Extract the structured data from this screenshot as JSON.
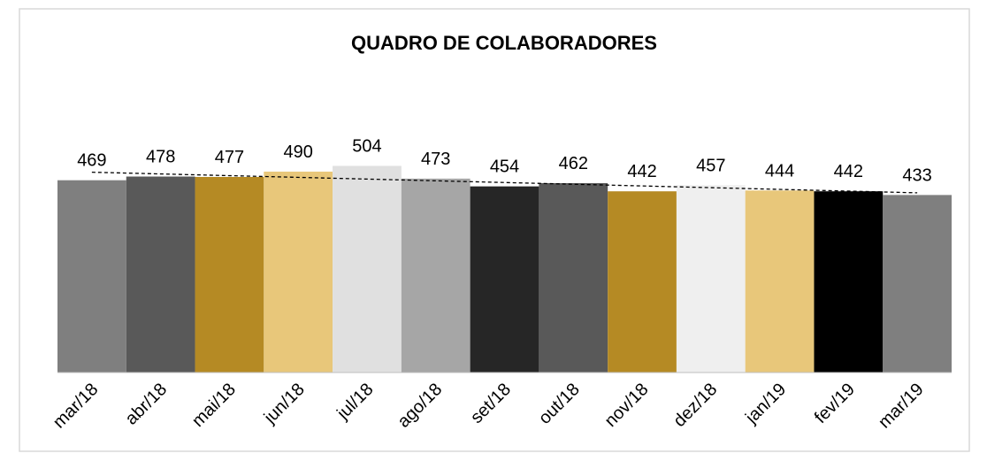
{
  "chart_data": {
    "type": "bar",
    "title": "QUADRO DE COLABORADORES",
    "categories": [
      "mar/18",
      "abr/18",
      "mai/18",
      "jun/18",
      "jul/18",
      "ago/18",
      "set/18",
      "out/18",
      "nov/18",
      "dez/18",
      "jan/19",
      "fev/19",
      "mar/19"
    ],
    "values": [
      469,
      478,
      477,
      490,
      504,
      473,
      454,
      462,
      442,
      457,
      444,
      442,
      433
    ],
    "colors": [
      "#7f7f7f",
      "#595959",
      "#b58a24",
      "#e8c77a",
      "#e0e0e0",
      "#a6a6a6",
      "#262626",
      "#595959",
      "#b58a24",
      "#efefef",
      "#e8c77a",
      "#000000",
      "#7f7f7f"
    ],
    "ylim": [
      0,
      600
    ],
    "trendline": true
  }
}
